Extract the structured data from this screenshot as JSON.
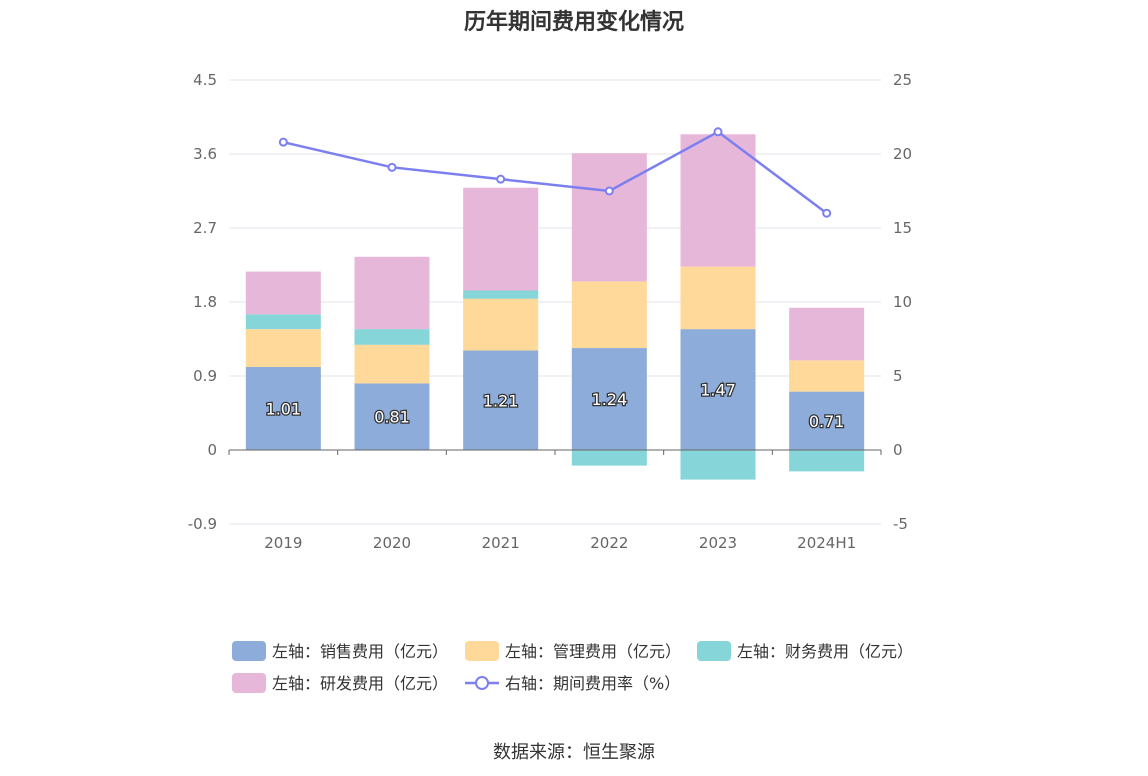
{
  "title": "历年期间费用变化情况",
  "source": "数据来源：恒生聚源",
  "chart_data": {
    "type": "bar",
    "stacked": true,
    "categories": [
      "2019",
      "2020",
      "2021",
      "2022",
      "2023",
      "2024H1"
    ],
    "left_axis": {
      "ylim": [
        -0.9,
        4.5
      ],
      "ticks": [
        "4.5",
        "3.6",
        "2.7",
        "1.8",
        "0.9",
        "0",
        "-0.9"
      ]
    },
    "right_axis": {
      "ylim": [
        -5,
        25
      ],
      "ticks": [
        "25",
        "20",
        "15",
        "10",
        "5",
        "0",
        "-5"
      ]
    },
    "series": [
      {
        "name": "左轴：销售费用（亿元）",
        "axis": "left",
        "color": "#8eacd9",
        "values": [
          1.01,
          0.81,
          1.21,
          1.24,
          1.47,
          0.71
        ],
        "labels": [
          "1.01",
          "0.81",
          "1.21",
          "1.24",
          "1.47",
          "0.71"
        ]
      },
      {
        "name": "左轴：管理费用（亿元）",
        "axis": "left",
        "color": "#fed99a",
        "values": [
          0.46,
          0.47,
          0.63,
          0.81,
          0.76,
          0.38
        ]
      },
      {
        "name": "左轴：财务费用（亿元）",
        "axis": "left",
        "color": "#86d5d8",
        "values": [
          0.18,
          0.19,
          0.1,
          -0.19,
          -0.36,
          -0.26
        ]
      },
      {
        "name": "左轴：研发费用（亿元）",
        "axis": "left",
        "color": "#e7b7d9",
        "values": [
          0.52,
          0.88,
          1.25,
          1.56,
          1.61,
          0.64
        ]
      },
      {
        "name": "右轴：期间费用率（%）",
        "axis": "right",
        "type": "line",
        "color": "#7b7ff0",
        "values": [
          20.8,
          19.1,
          18.3,
          17.5,
          21.5,
          16.0
        ]
      }
    ],
    "grid": true,
    "legend_position": "bottom"
  }
}
